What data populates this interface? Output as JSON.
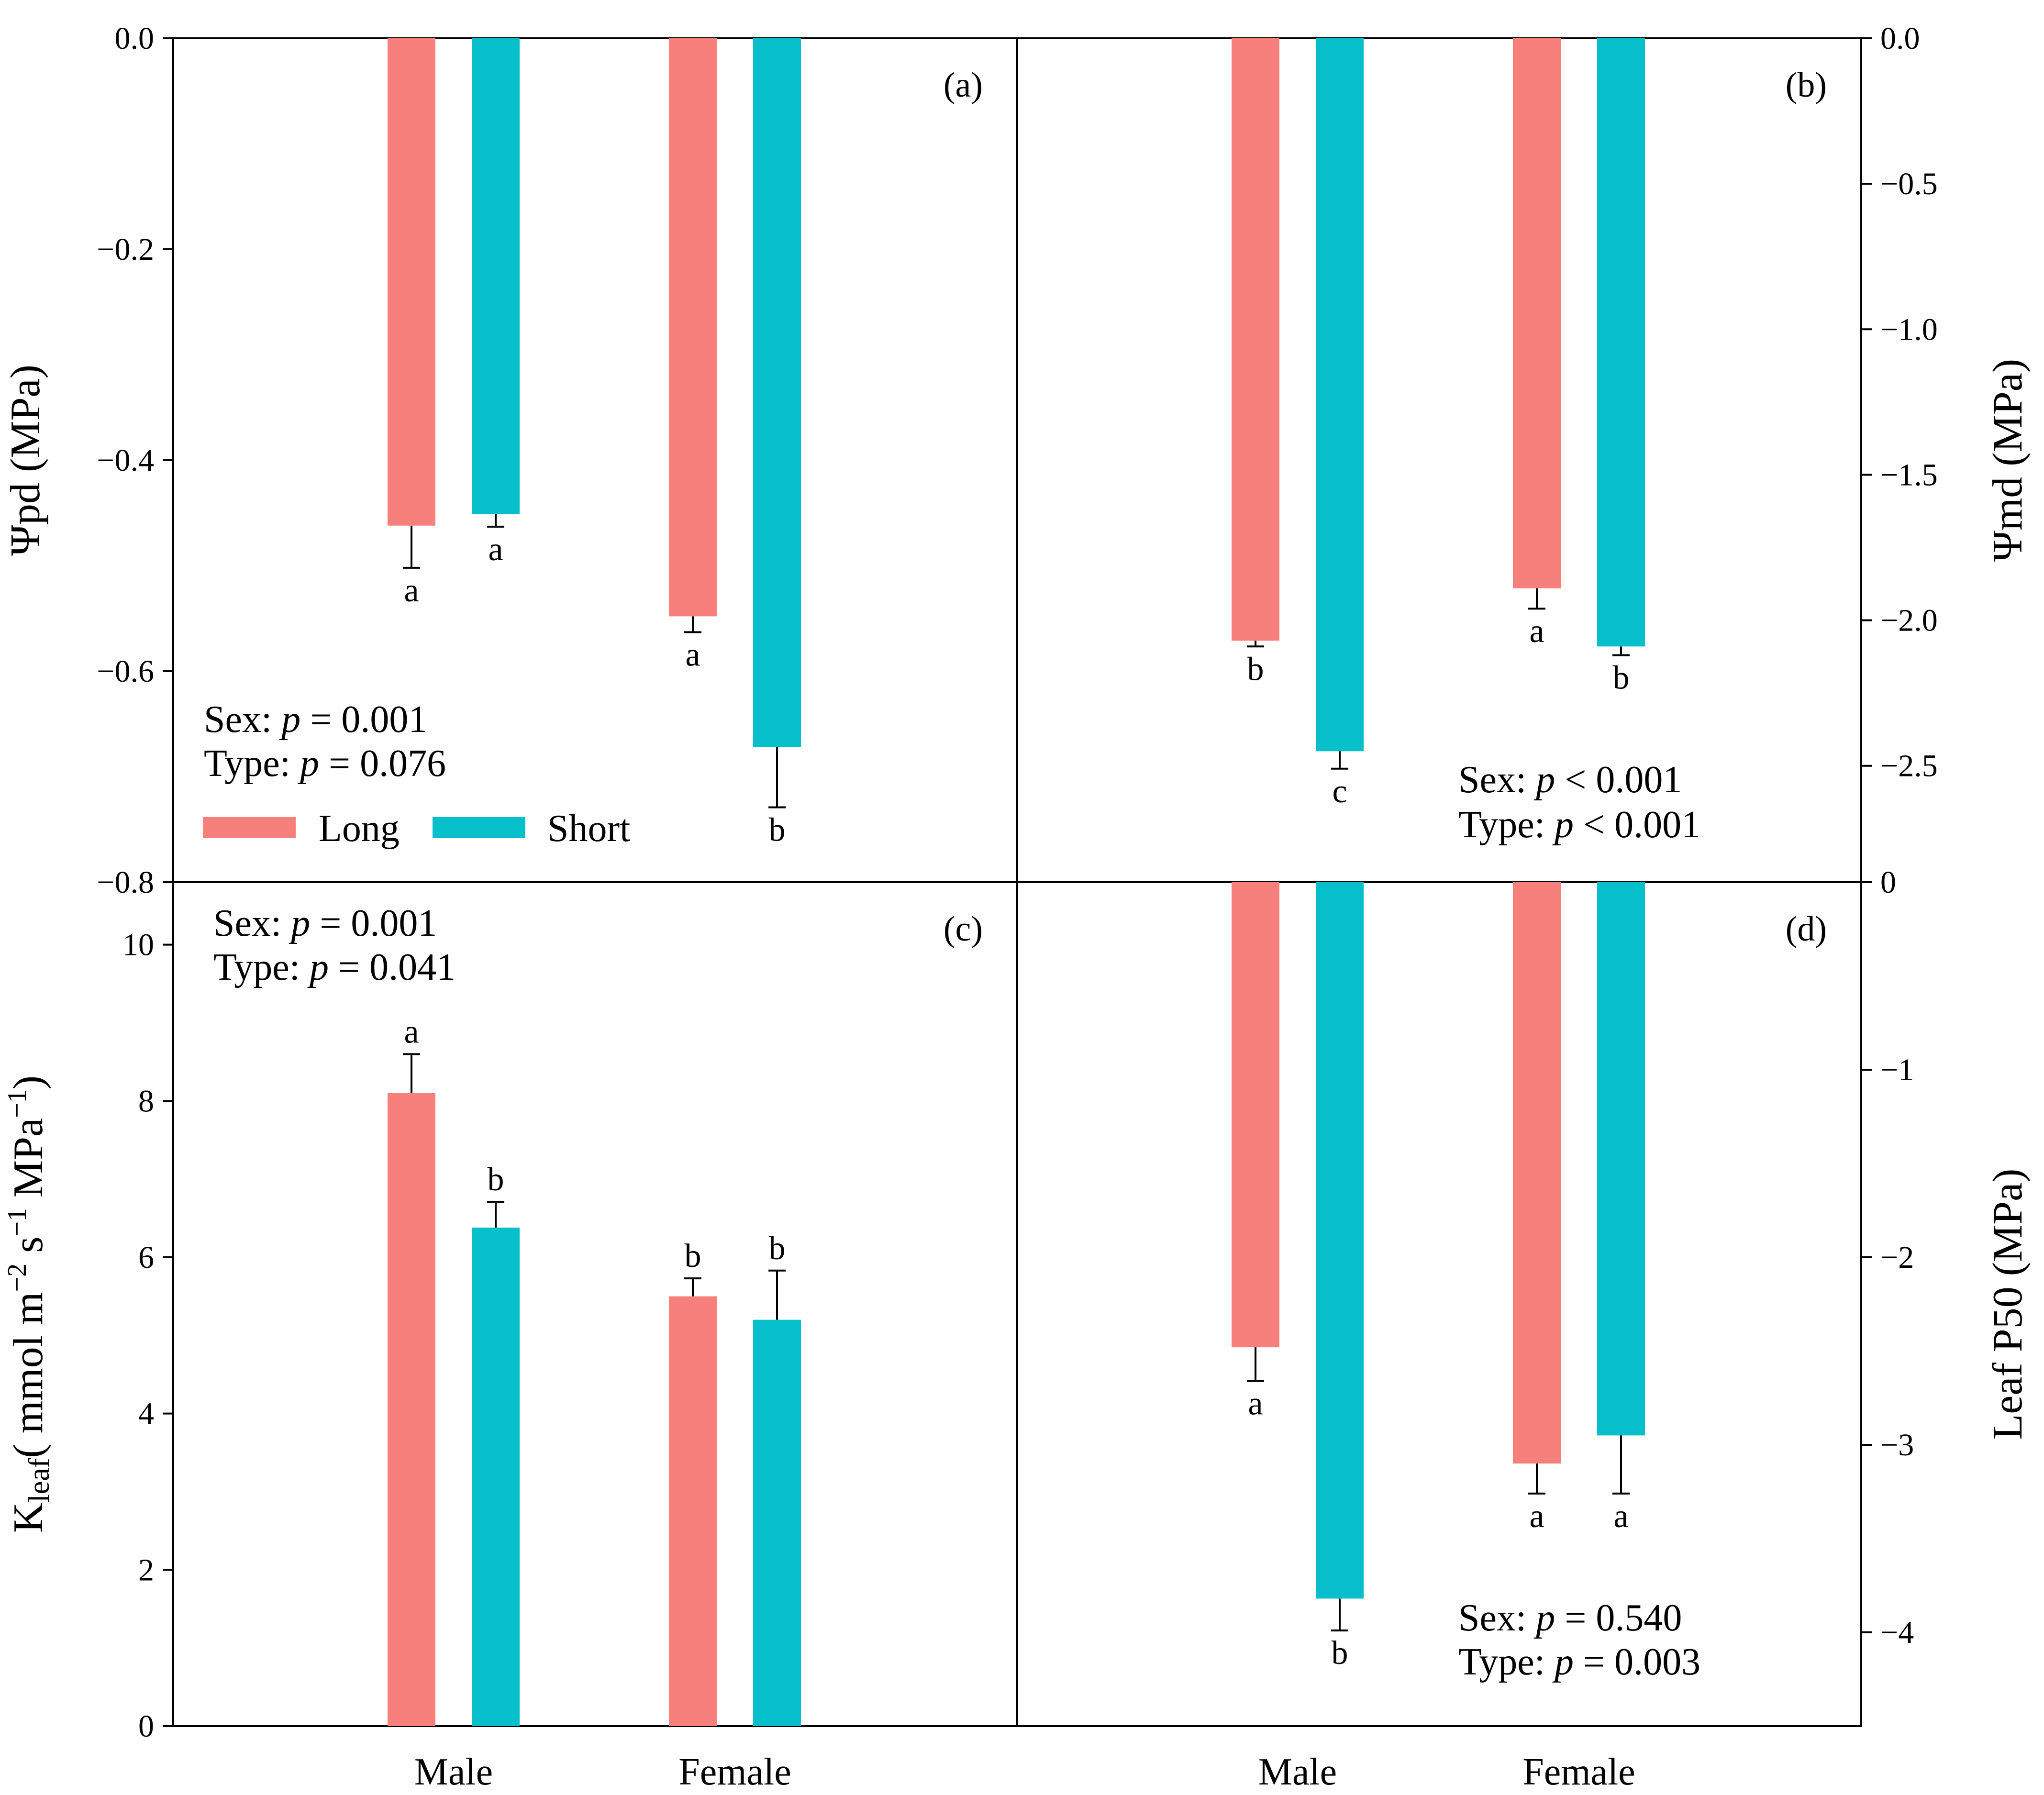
{
  "colors": {
    "long": "#f8807c",
    "short": "#06bfca",
    "axis": "#000000"
  },
  "categories": [
    "Male",
    "Female"
  ],
  "legend": {
    "long_label": "Long",
    "short_label": "Short"
  },
  "chart_data": [
    {
      "id": "a",
      "type": "bar",
      "panel_label": "(a)",
      "ylabel": "Ψpd (MPa)",
      "ylim": [
        -0.8,
        0.0
      ],
      "yticks": [
        0.0,
        -0.2,
        -0.4,
        -0.6,
        -0.8
      ],
      "ytick_labels": [
        "0.0",
        "−0.2",
        "−0.4",
        "−0.6",
        "−0.8"
      ],
      "categories": [
        "Male",
        "Female"
      ],
      "series": [
        {
          "name": "Long",
          "values": [
            -0.462,
            -0.548
          ],
          "errors": [
            0.04,
            0.015
          ],
          "letters": [
            "a",
            "a"
          ]
        },
        {
          "name": "Short",
          "values": [
            -0.451,
            -0.672
          ],
          "errors": [
            0.012,
            0.057
          ],
          "letters": [
            "a",
            "b"
          ]
        }
      ],
      "stats": [
        "Sex: p = 0.001",
        "Type: p = 0.076"
      ],
      "stats_parts": [
        {
          "label": "Sex: ",
          "p": "p",
          "rest": " = 0.001"
        },
        {
          "label": "Type: ",
          "p": "p",
          "rest": " = 0.076"
        }
      ]
    },
    {
      "id": "b",
      "type": "bar",
      "panel_label": "(b)",
      "ylabel": "Ψmd (MPa)",
      "ylim": [
        -2.9,
        0.0
      ],
      "yticks": [
        0.0,
        -0.5,
        -1.0,
        -1.5,
        -2.0,
        -2.5
      ],
      "ytick_labels": [
        "0.0",
        "−0.5",
        "−1.0",
        "−1.5",
        "−2.0",
        "−2.5"
      ],
      "categories": [
        "Male",
        "Female"
      ],
      "series": [
        {
          "name": "Long",
          "values": [
            -2.07,
            -1.89
          ],
          "errors": [
            0.02,
            0.07
          ],
          "letters": [
            "b",
            "a"
          ]
        },
        {
          "name": "Short",
          "values": [
            -2.45,
            -2.09
          ],
          "errors": [
            0.06,
            0.03
          ],
          "letters": [
            "c",
            "b"
          ]
        }
      ],
      "stats": [
        "Sex: p < 0.001",
        "Type: p < 0.001"
      ],
      "stats_parts": [
        {
          "label": "Sex: ",
          "p": "p",
          "rest": " < 0.001"
        },
        {
          "label": "Type: ",
          "p": "p",
          "rest": " < 0.001"
        }
      ]
    },
    {
      "id": "c",
      "type": "bar",
      "panel_label": "(c)",
      "ylabel": "Kleaf ( mmol m⁻² s⁻¹ MPa⁻¹)",
      "ylabel_parts": {
        "main": "K",
        "sub": "leaf",
        "rest": "( mmol m",
        "sup1": "−2",
        "mid": " s",
        "sup2": "−1",
        "mid2": " MPa",
        "sup3": "−1",
        "end": ")"
      },
      "ylim": [
        0,
        10.8
      ],
      "yticks": [
        0,
        2,
        4,
        6,
        8,
        10
      ],
      "ytick_labels": [
        "0",
        "2",
        "4",
        "6",
        "8",
        "10"
      ],
      "categories": [
        "Male",
        "Female"
      ],
      "series": [
        {
          "name": "Long",
          "values": [
            8.1,
            5.5
          ],
          "errors": [
            0.5,
            0.23
          ],
          "letters": [
            "a",
            "b"
          ]
        },
        {
          "name": "Short",
          "values": [
            6.38,
            5.2
          ],
          "errors": [
            0.33,
            0.63
          ],
          "letters": [
            "b",
            "b"
          ]
        }
      ],
      "stats": [
        "Sex: p = 0.001",
        "Type: p = 0.041"
      ],
      "stats_parts": [
        {
          "label": "Sex: ",
          "p": "p",
          "rest": " = 0.001"
        },
        {
          "label": "Type: ",
          "p": "p",
          "rest": " = 0.041"
        }
      ]
    },
    {
      "id": "d",
      "type": "bar",
      "panel_label": "(d)",
      "ylabel": "Leaf P50 (MPa)",
      "ylim": [
        -4.5,
        0
      ],
      "yticks": [
        0,
        -1,
        -2,
        -3,
        -4
      ],
      "ytick_labels": [
        "0",
        "−1",
        "−2",
        "−3",
        "−4"
      ],
      "categories": [
        "Male",
        "Female"
      ],
      "series": [
        {
          "name": "Long",
          "values": [
            -2.48,
            -3.1
          ],
          "errors": [
            0.18,
            0.16
          ],
          "letters": [
            "a",
            "a"
          ]
        },
        {
          "name": "Short",
          "values": [
            -3.82,
            -2.95
          ],
          "errors": [
            0.17,
            0.31
          ],
          "letters": [
            "b",
            "a"
          ]
        }
      ],
      "stats": [
        "Sex: p = 0.540",
        "Type: p = 0.003"
      ],
      "stats_parts": [
        {
          "label": "Sex: ",
          "p": "p",
          "rest": " = 0.540"
        },
        {
          "label": "Type: ",
          "p": "p",
          "rest": " = 0.003"
        }
      ]
    }
  ]
}
